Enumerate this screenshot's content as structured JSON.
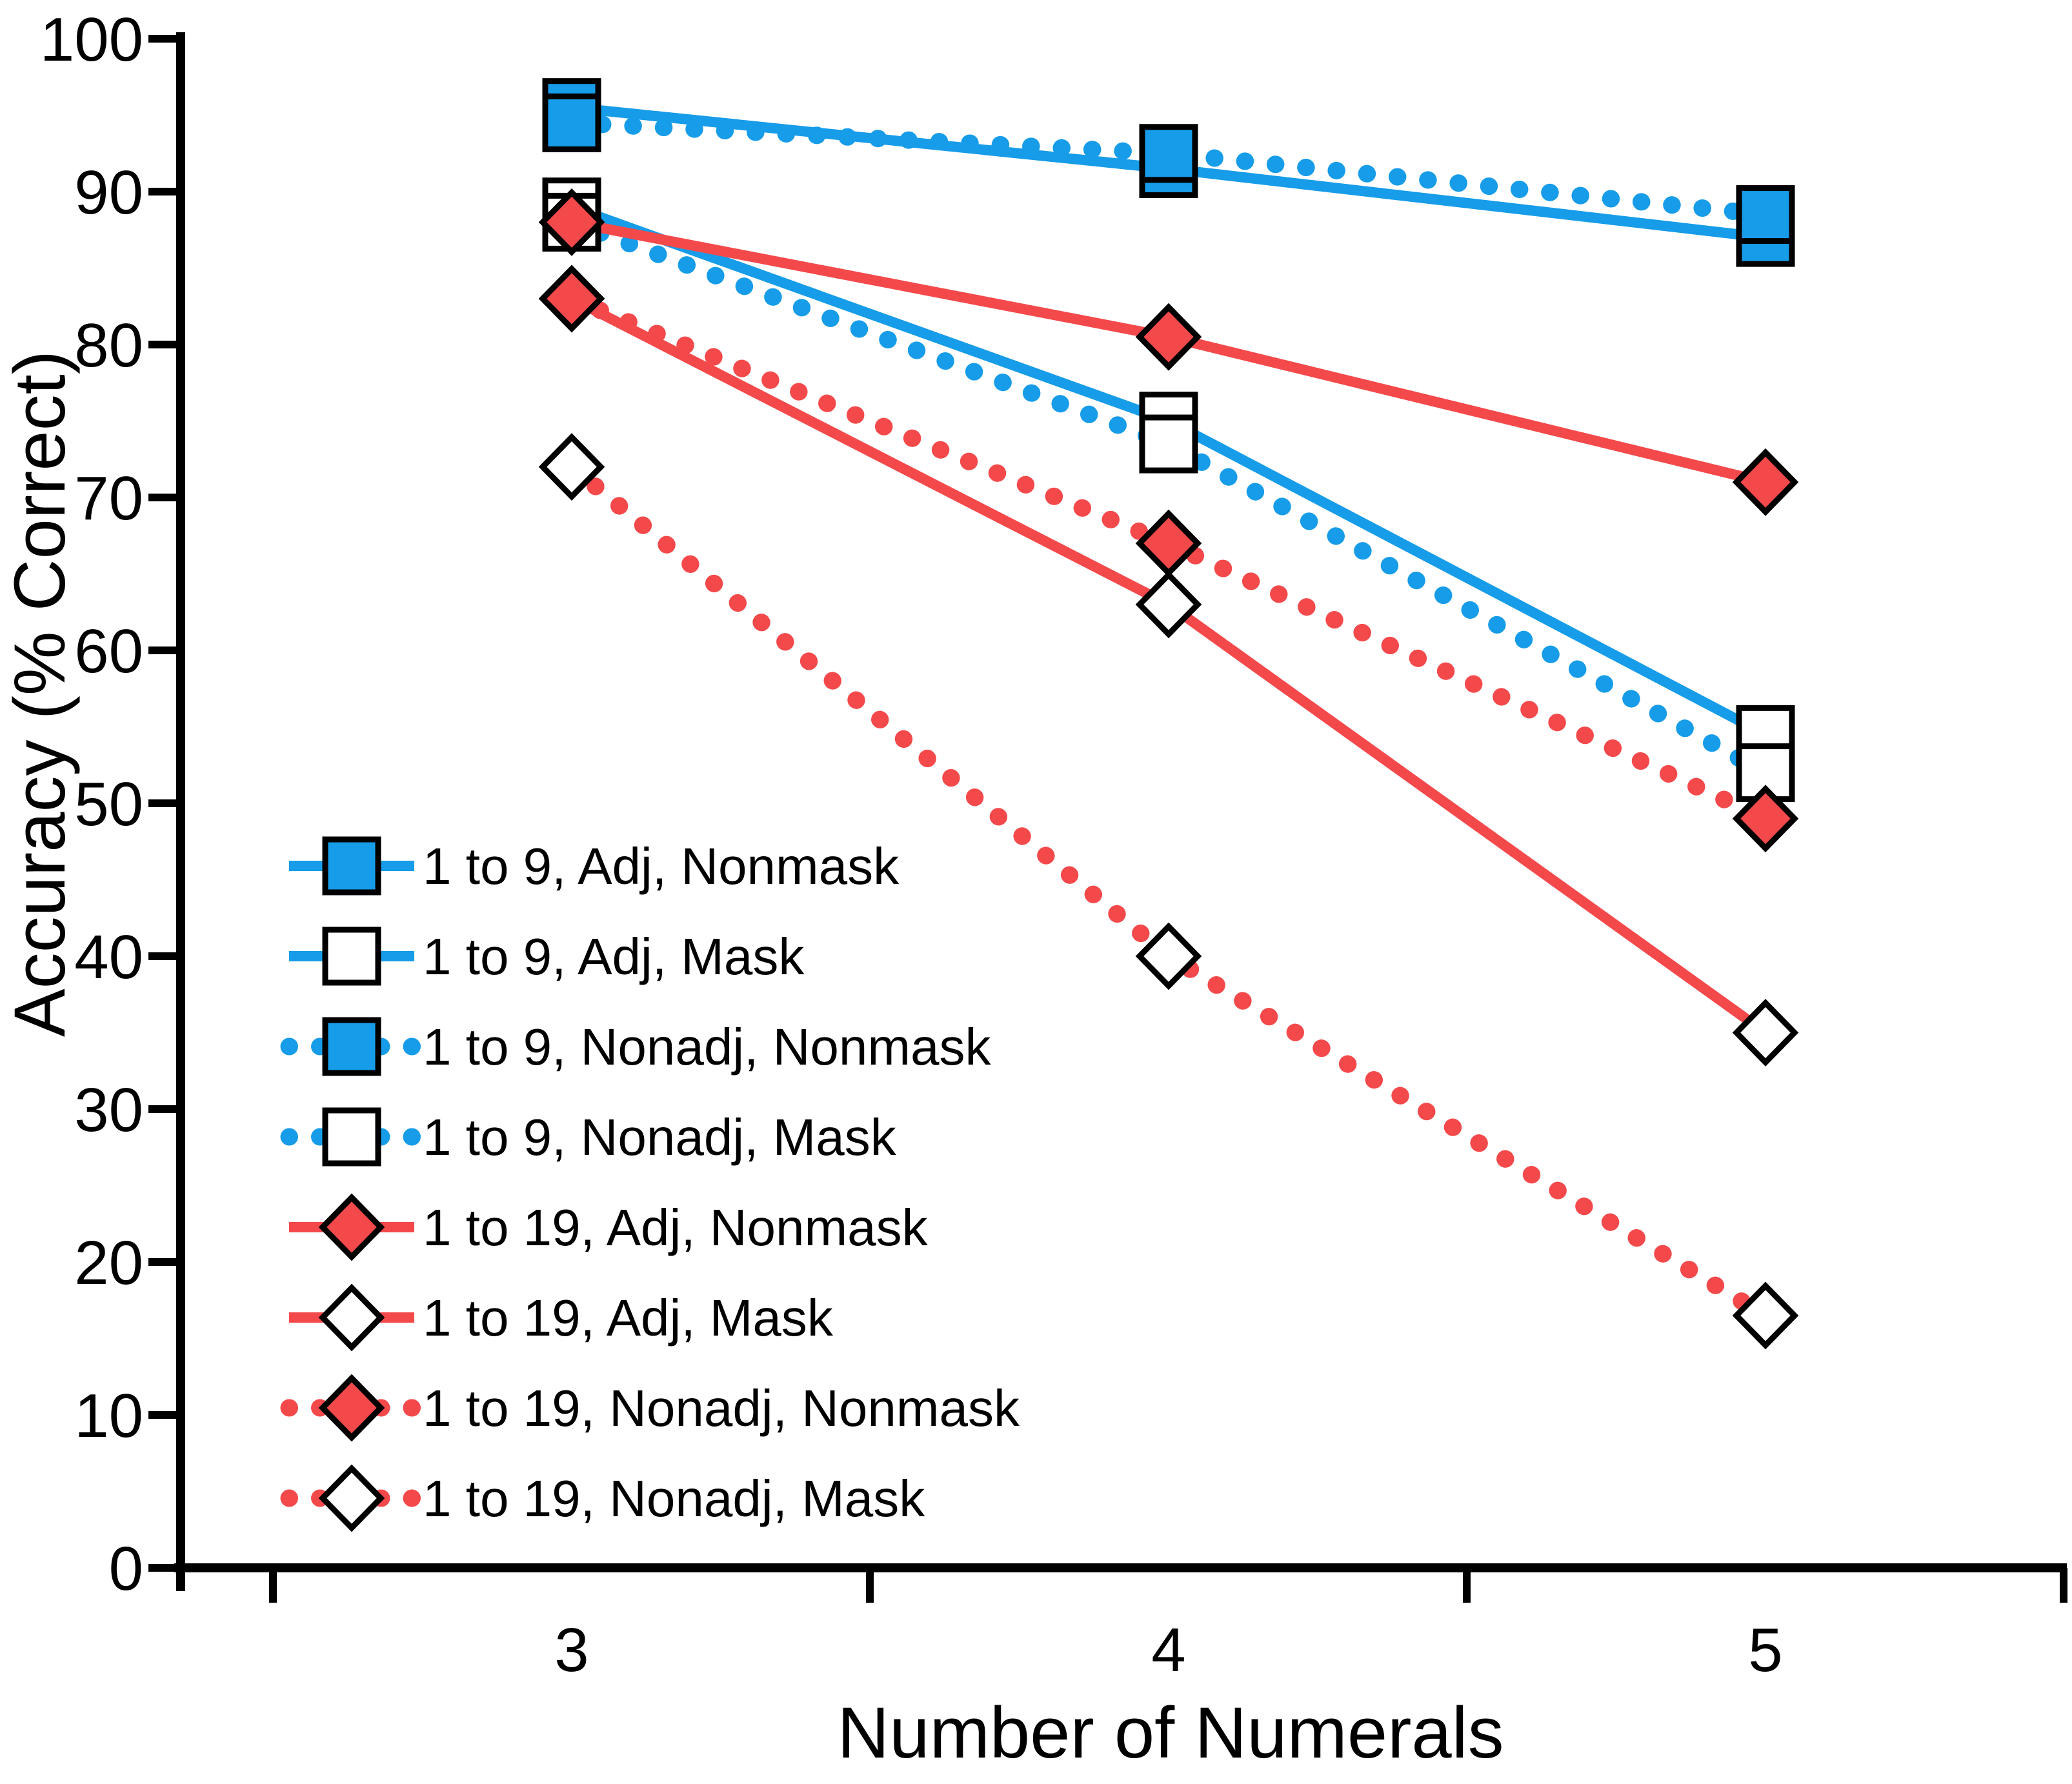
{
  "chart_data": {
    "type": "line",
    "x": [
      3,
      4,
      5
    ],
    "x_tick_labels": [
      "3",
      "4",
      "5"
    ],
    "xlabel": "Number of Numerals",
    "ylabel": "Accuracy (% Correct)",
    "ylim": [
      0,
      100
    ],
    "y_ticks": [
      0,
      10,
      20,
      30,
      40,
      50,
      60,
      70,
      80,
      90,
      100
    ],
    "grid": "off",
    "legend_position": "inside-lower-left",
    "colors": {
      "blue": "#169CE8",
      "red": "#F4494B",
      "axis": "#000000",
      "marker_outline": "#000000",
      "background": "#FFFFFF"
    },
    "series": [
      {
        "name": "1 to 9, Adj, Nonmask",
        "color": "blue",
        "line": "solid",
        "marker": "square",
        "marker_fill": "blue",
        "values": [
          95.5,
          91.5,
          87.0
        ]
      },
      {
        "name": "1 to 9, Adj, Mask",
        "color": "blue",
        "line": "solid",
        "marker": "square",
        "marker_fill": "white",
        "values": [
          89.0,
          75.0,
          54.5
        ]
      },
      {
        "name": "1 to 9, Nonadj, Nonmask",
        "color": "blue",
        "line": "dotted",
        "marker": "square",
        "marker_fill": "blue",
        "values": [
          94.5,
          92.5,
          88.5
        ]
      },
      {
        "name": "1 to 9, Nonadj, Mask",
        "color": "blue",
        "line": "dotted",
        "marker": "square",
        "marker_fill": "white",
        "values": [
          88.0,
          73.5,
          52.0
        ]
      },
      {
        "name": "1 to 19, Adj, Nonmask",
        "color": "red",
        "line": "solid",
        "marker": "diamond",
        "marker_fill": "red",
        "values": [
          88.0,
          80.5,
          71.0
        ]
      },
      {
        "name": "1 to 19, Adj, Mask",
        "color": "red",
        "line": "solid",
        "marker": "diamond",
        "marker_fill": "white",
        "values": [
          83.0,
          63.0,
          35.0
        ]
      },
      {
        "name": "1 to 19, Nonadj, Nonmask",
        "color": "red",
        "line": "dotted",
        "marker": "diamond",
        "marker_fill": "red",
        "values": [
          83.0,
          67.0,
          49.0
        ]
      },
      {
        "name": "1 to 19, Nonadj, Mask",
        "color": "red",
        "line": "dotted",
        "marker": "diamond",
        "marker_fill": "white",
        "values": [
          72.0,
          40.0,
          16.5
        ]
      }
    ]
  }
}
